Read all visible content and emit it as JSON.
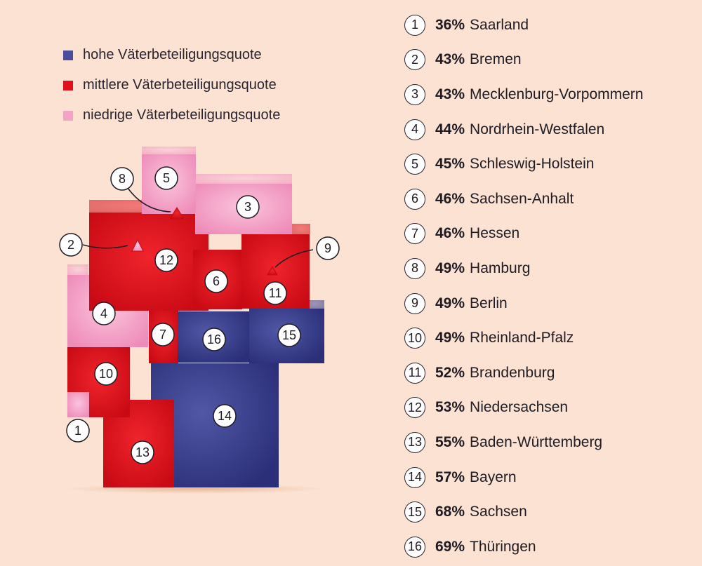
{
  "colors": {
    "high": "#3d4396",
    "mid": "#e2101a",
    "low": "#f3a3c6",
    "background": "#fbe2d3"
  },
  "legend": [
    {
      "label": "hohe Väterbeteiligungsquote",
      "color": "#4a4f9c"
    },
    {
      "label": "mittlere Väterbeteiligungsquote",
      "color": "#e2101a"
    },
    {
      "label": "niedrige Väterbeteiligungsquote",
      "color": "#f3a3c6"
    }
  ],
  "chart_data": {
    "type": "cartogram",
    "categories": [
      "hohe Väterbeteiligungsquote",
      "mittlere Väterbeteiligungsquote",
      "niedrige Väterbeteiligungsquote"
    ],
    "states": [
      {
        "num": "1",
        "pct": "36%",
        "name": "Saarland",
        "value": 36,
        "category": "low"
      },
      {
        "num": "2",
        "pct": "43%",
        "name": "Bremen",
        "value": 43,
        "category": "low"
      },
      {
        "num": "3",
        "pct": "43%",
        "name": "Mecklenburg-Vorpommern",
        "value": 43,
        "category": "low"
      },
      {
        "num": "4",
        "pct": "44%",
        "name": "Nordrhein-Westfalen",
        "value": 44,
        "category": "low"
      },
      {
        "num": "5",
        "pct": "45%",
        "name": "Schleswig-Holstein",
        "value": 45,
        "category": "low"
      },
      {
        "num": "6",
        "pct": "46%",
        "name": "Sachsen-Anhalt",
        "value": 46,
        "category": "mid"
      },
      {
        "num": "7",
        "pct": "46%",
        "name": "Hessen",
        "value": 46,
        "category": "mid"
      },
      {
        "num": "8",
        "pct": "49%",
        "name": "Hamburg",
        "value": 49,
        "category": "mid"
      },
      {
        "num": "9",
        "pct": "49%",
        "name": "Berlin",
        "value": 49,
        "category": "mid"
      },
      {
        "num": "10",
        "pct": "49%",
        "name": "Rheinland-Pfalz",
        "value": 49,
        "category": "mid"
      },
      {
        "num": "11",
        "pct": "52%",
        "name": "Brandenburg",
        "value": 52,
        "category": "mid"
      },
      {
        "num": "12",
        "pct": "53%",
        "name": "Niedersachsen",
        "value": 53,
        "category": "mid"
      },
      {
        "num": "13",
        "pct": "55%",
        "name": "Baden-Württemberg",
        "value": 55,
        "category": "mid"
      },
      {
        "num": "14",
        "pct": "57%",
        "name": "Bayern",
        "value": 57,
        "category": "high"
      },
      {
        "num": "15",
        "pct": "68%",
        "name": "Sachsen",
        "value": 68,
        "category": "high"
      },
      {
        "num": "16",
        "pct": "69%",
        "name": "Thüringen",
        "value": 69,
        "category": "high"
      }
    ]
  }
}
